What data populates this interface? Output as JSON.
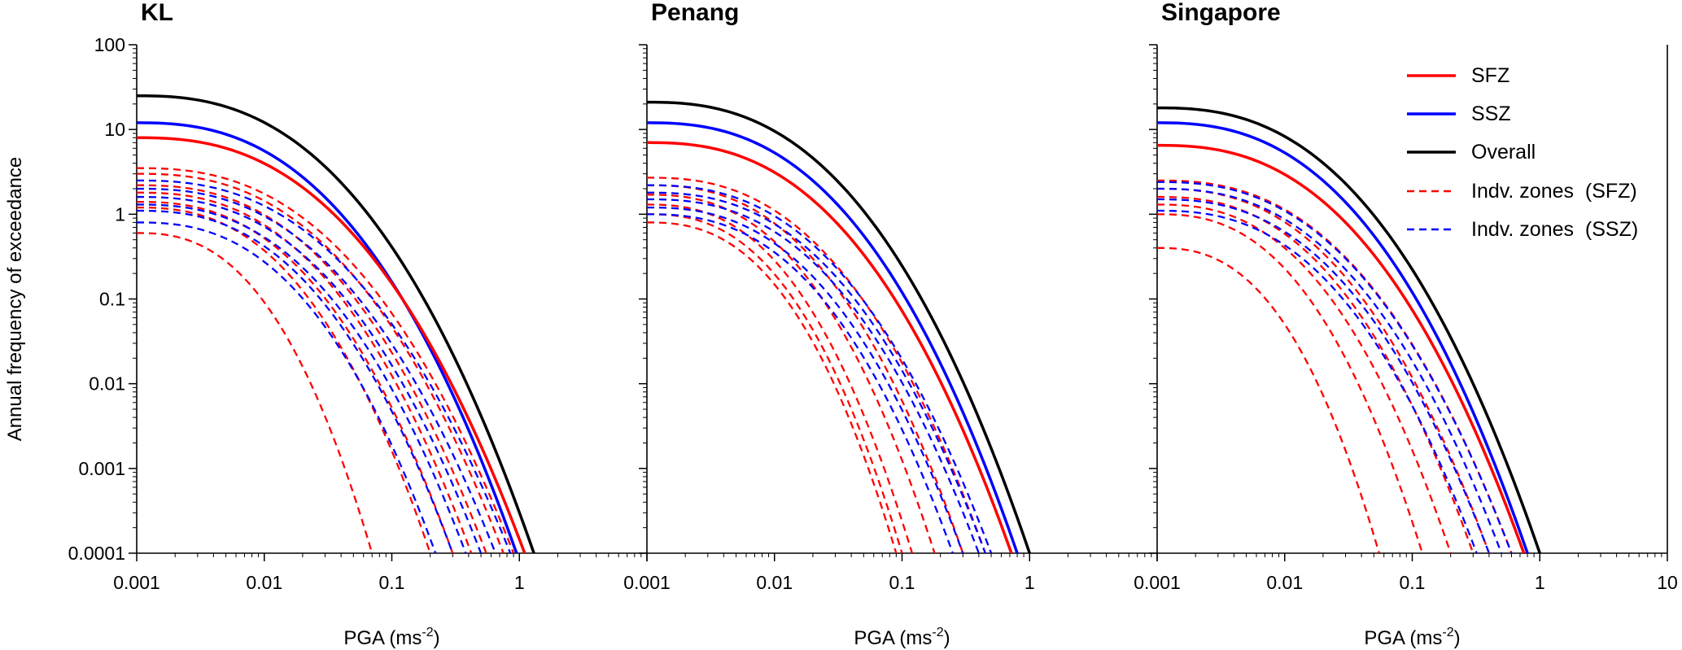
{
  "chart_data": {
    "type": "line",
    "x_scale": "log",
    "y_scale": "log",
    "xlabel": "PGA (ms",
    "xlabel_sup": "-2",
    "xlabel_end": ")",
    "ylabel": "Annual frequency of exceedance",
    "xlim": [
      0.001,
      10
    ],
    "ylim": [
      0.0001,
      100
    ],
    "x_ticks": [
      "0.001",
      "0.01",
      "0.1",
      "1",
      "10"
    ],
    "y_ticks": [
      "0.0001",
      "0.001",
      "0.01",
      "0.1",
      "1",
      "10",
      "100"
    ],
    "legend": {
      "position": "top-right",
      "entries": [
        {
          "label": "SFZ",
          "color": "#ff0000",
          "style": "solid"
        },
        {
          "label": "SSZ",
          "color": "#0000ff",
          "style": "solid"
        },
        {
          "label": "Overall",
          "color": "#000000",
          "style": "solid"
        },
        {
          "label": "Indv. zones  (SFZ)",
          "color": "#ff0000",
          "style": "dashed"
        },
        {
          "label": "Indv. zones  (SSZ)",
          "color": "#0000ff",
          "style": "dashed"
        }
      ]
    },
    "panels": [
      {
        "title": "KL",
        "series": [
          {
            "name": "Overall",
            "style": "solid",
            "color": "#000000",
            "y0": 25,
            "x_end": 1.3
          },
          {
            "name": "SSZ",
            "style": "solid",
            "color": "#0000ff",
            "y0": 12,
            "x_end": 0.95
          },
          {
            "name": "SFZ",
            "style": "solid",
            "color": "#ff0000",
            "y0": 8,
            "x_end": 1.1
          },
          {
            "name": "SFZ zone 1",
            "style": "dashed",
            "color": "#ff0000",
            "y0": 3.5,
            "x_end": 0.9
          },
          {
            "name": "SFZ zone 2",
            "style": "dashed",
            "color": "#ff0000",
            "y0": 3.0,
            "x_end": 0.75
          },
          {
            "name": "SFZ zone 3",
            "style": "dashed",
            "color": "#ff0000",
            "y0": 2.2,
            "x_end": 0.55
          },
          {
            "name": "SFZ zone 4",
            "style": "dashed",
            "color": "#ff0000",
            "y0": 1.8,
            "x_end": 0.42
          },
          {
            "name": "SFZ zone 5",
            "style": "dashed",
            "color": "#ff0000",
            "y0": 1.4,
            "x_end": 0.3
          },
          {
            "name": "SFZ zone 6",
            "style": "dashed",
            "color": "#ff0000",
            "y0": 1.2,
            "x_end": 0.2
          },
          {
            "name": "SFZ zone 7",
            "style": "dashed",
            "color": "#ff0000",
            "y0": 0.6,
            "x_end": 0.07
          },
          {
            "name": "SSZ zone 1",
            "style": "dashed",
            "color": "#0000ff",
            "y0": 2.5,
            "x_end": 0.85
          },
          {
            "name": "SSZ zone 2",
            "style": "dashed",
            "color": "#0000ff",
            "y0": 2.0,
            "x_end": 0.65
          },
          {
            "name": "SSZ zone 3",
            "style": "dashed",
            "color": "#0000ff",
            "y0": 1.6,
            "x_end": 0.5
          },
          {
            "name": "SSZ zone 4",
            "style": "dashed",
            "color": "#0000ff",
            "y0": 1.3,
            "x_end": 0.38
          },
          {
            "name": "SSZ zone 5",
            "style": "dashed",
            "color": "#0000ff",
            "y0": 1.1,
            "x_end": 0.3
          },
          {
            "name": "SSZ zone 6",
            "style": "dashed",
            "color": "#0000ff",
            "y0": 0.8,
            "x_end": 0.22
          }
        ]
      },
      {
        "title": "Penang",
        "series": [
          {
            "name": "Overall",
            "style": "solid",
            "color": "#000000",
            "y0": 21,
            "x_end": 1.0
          },
          {
            "name": "SSZ",
            "style": "solid",
            "color": "#0000ff",
            "y0": 12,
            "x_end": 0.8
          },
          {
            "name": "SFZ",
            "style": "solid",
            "color": "#ff0000",
            "y0": 7,
            "x_end": 0.72
          },
          {
            "name": "SFZ zone 1",
            "style": "dashed",
            "color": "#ff0000",
            "y0": 2.7,
            "x_end": 0.45
          },
          {
            "name": "SFZ zone 2",
            "style": "dashed",
            "color": "#ff0000",
            "y0": 2.2,
            "x_end": 0.3
          },
          {
            "name": "SFZ zone 3",
            "style": "dashed",
            "color": "#ff0000",
            "y0": 1.7,
            "x_end": 0.18
          },
          {
            "name": "SFZ zone 4",
            "style": "dashed",
            "color": "#ff0000",
            "y0": 1.3,
            "x_end": 0.12
          },
          {
            "name": "SFZ zone 5",
            "style": "dashed",
            "color": "#ff0000",
            "y0": 1.0,
            "x_end": 0.1
          },
          {
            "name": "SFZ zone 6",
            "style": "dashed",
            "color": "#ff0000",
            "y0": 0.8,
            "x_end": 0.09
          },
          {
            "name": "SSZ zone 1",
            "style": "dashed",
            "color": "#0000ff",
            "y0": 2.2,
            "x_end": 0.5
          },
          {
            "name": "SSZ zone 2",
            "style": "dashed",
            "color": "#0000ff",
            "y0": 1.8,
            "x_end": 0.45
          },
          {
            "name": "SSZ zone 3",
            "style": "dashed",
            "color": "#0000ff",
            "y0": 1.5,
            "x_end": 0.4
          },
          {
            "name": "SSZ zone 4",
            "style": "dashed",
            "color": "#0000ff",
            "y0": 1.2,
            "x_end": 0.3
          },
          {
            "name": "SSZ zone 5",
            "style": "dashed",
            "color": "#0000ff",
            "y0": 1.0,
            "x_end": 0.25
          }
        ]
      },
      {
        "title": "Singapore",
        "series": [
          {
            "name": "Overall",
            "style": "solid",
            "color": "#000000",
            "y0": 18,
            "x_end": 1.0
          },
          {
            "name": "SSZ",
            "style": "solid",
            "color": "#0000ff",
            "y0": 12,
            "x_end": 0.8
          },
          {
            "name": "SFZ",
            "style": "solid",
            "color": "#ff0000",
            "y0": 6.5,
            "x_end": 0.75
          },
          {
            "name": "SFZ zone 1",
            "style": "dashed",
            "color": "#ff0000",
            "y0": 2.5,
            "x_end": 0.6
          },
          {
            "name": "SFZ zone 2",
            "style": "dashed",
            "color": "#ff0000",
            "y0": 2.0,
            "x_end": 0.4
          },
          {
            "name": "SFZ zone 3",
            "style": "dashed",
            "color": "#ff0000",
            "y0": 1.6,
            "x_end": 0.3
          },
          {
            "name": "SFZ zone 4",
            "style": "dashed",
            "color": "#ff0000",
            "y0": 1.3,
            "x_end": 0.2
          },
          {
            "name": "SFZ zone 5",
            "style": "dashed",
            "color": "#ff0000",
            "y0": 1.0,
            "x_end": 0.12
          },
          {
            "name": "SFZ zone 6",
            "style": "dashed",
            "color": "#ff0000",
            "y0": 0.4,
            "x_end": 0.055
          },
          {
            "name": "SSZ zone 1",
            "style": "dashed",
            "color": "#0000ff",
            "y0": 2.4,
            "x_end": 0.6
          },
          {
            "name": "SSZ zone 2",
            "style": "dashed",
            "color": "#0000ff",
            "y0": 2.0,
            "x_end": 0.5
          },
          {
            "name": "SSZ zone 3",
            "style": "dashed",
            "color": "#0000ff",
            "y0": 1.5,
            "x_end": 0.4
          },
          {
            "name": "SSZ zone 4",
            "style": "dashed",
            "color": "#0000ff",
            "y0": 1.1,
            "x_end": 0.32
          }
        ]
      }
    ]
  }
}
